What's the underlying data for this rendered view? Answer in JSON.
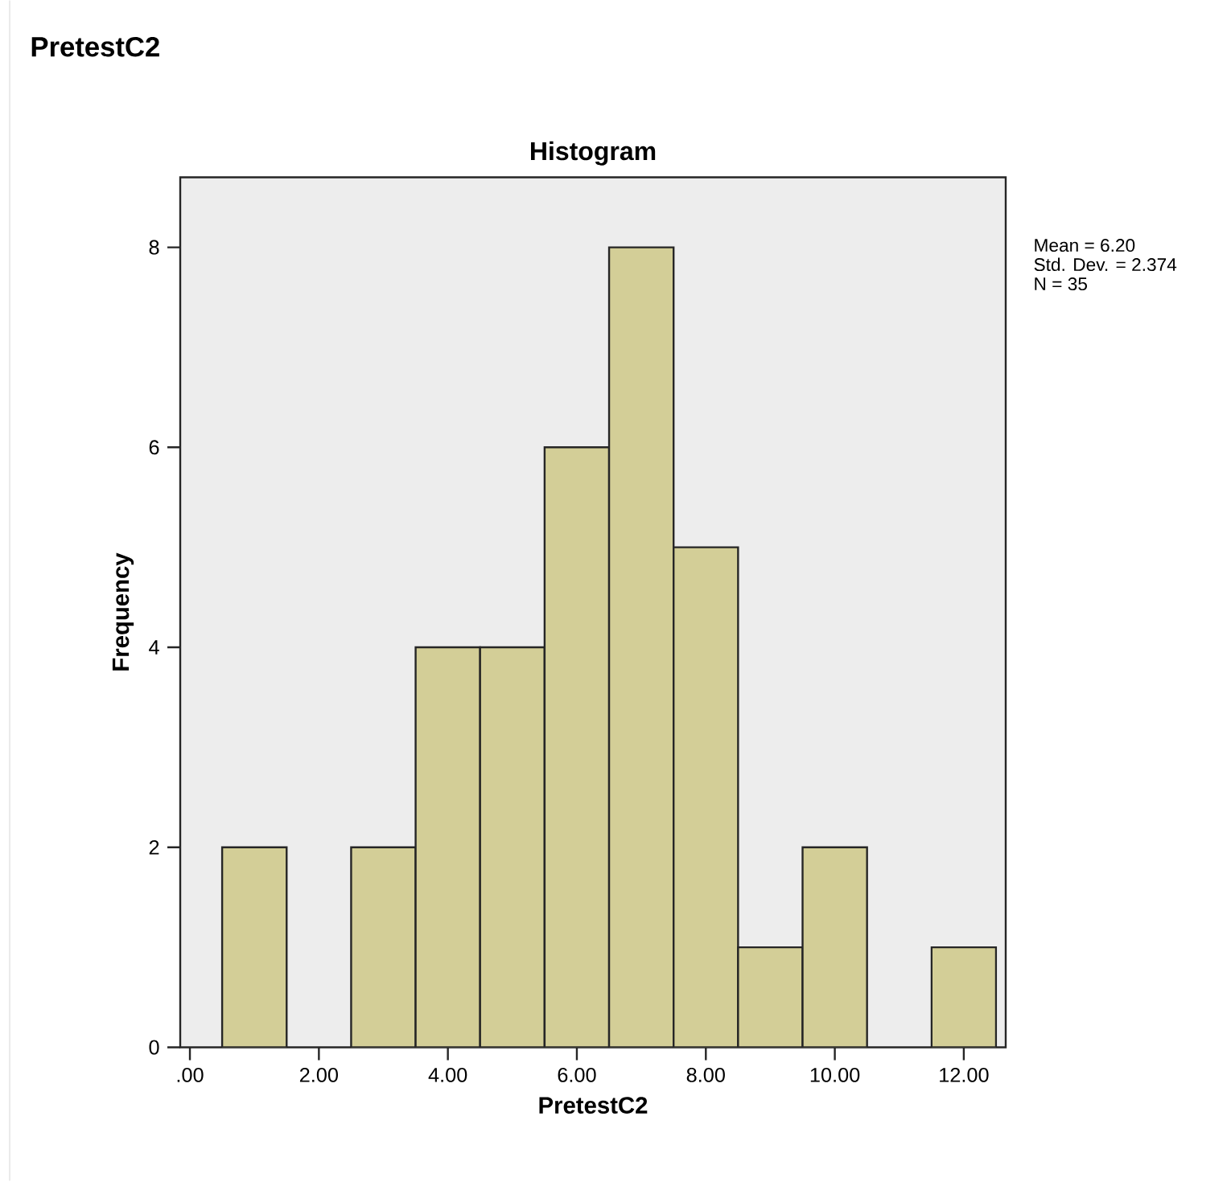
{
  "chart_data": {
    "type": "histogram",
    "title": "Histogram",
    "xlabel": "PretestC2",
    "ylabel": "Frequency",
    "bins": [
      0.5,
      1.5,
      2.5,
      3.5,
      4.5,
      5.5,
      6.5,
      7.5,
      8.5,
      9.5,
      10.5,
      11.5,
      12.5
    ],
    "values": [
      2,
      0,
      2,
      4,
      4,
      6,
      8,
      5,
      1,
      2,
      0,
      1
    ],
    "color": "#d3ce97",
    "xlim": [
      -0.15,
      12.65
    ],
    "xticks": [
      {
        "value": 0,
        "label": ".00"
      },
      {
        "value": 2,
        "label": "2.00"
      },
      {
        "value": 4,
        "label": "4.00"
      },
      {
        "value": 6,
        "label": "6.00"
      },
      {
        "value": 8,
        "label": "8.00"
      },
      {
        "value": 10,
        "label": "10.00"
      },
      {
        "value": 12,
        "label": "12.00"
      }
    ],
    "ylim": [
      0,
      8.7
    ],
    "yticks": [
      0,
      2,
      4,
      6,
      8
    ],
    "grid": false,
    "annotations": [
      "PretestC2",
      "Mean = 6.20",
      "Std. Dev. = 2.374",
      "N = 35"
    ]
  }
}
